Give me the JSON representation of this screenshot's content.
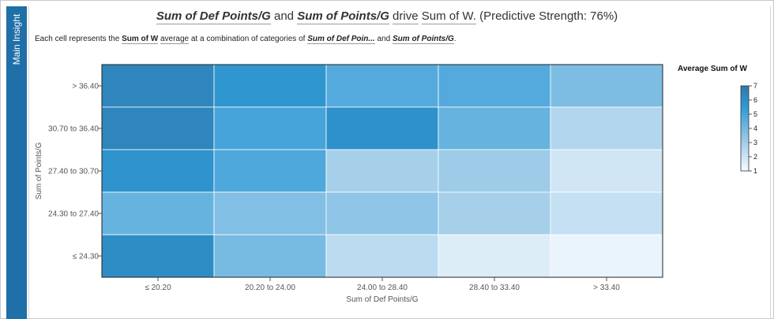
{
  "sidebar": {
    "label": "Main Insight"
  },
  "title": {
    "part1": "Sum of Def Points/G",
    "part2": " and ",
    "part3": "Sum of Points/G",
    "part4": " ",
    "part5": "drive",
    "part6": " ",
    "part7": "Sum of W.",
    "part8": " (Predictive Strength: 76%)"
  },
  "subtitle": {
    "t1": "Each cell represents the ",
    "t2": "Sum of W",
    "t3": " ",
    "t4": "average",
    "t5": " at a combination of categories of ",
    "t6": "Sum of Def Poin...",
    "t7": " and ",
    "t8": "Sum of Points/G",
    "t9": "."
  },
  "legend": {
    "title": "Average Sum of W"
  },
  "colors": {
    "low": "#f7fbff",
    "high": "#2e79ab",
    "mid": "#2f9ad6"
  },
  "chart_data": {
    "type": "heatmap",
    "xlabel": "Sum of Def Points/G",
    "ylabel": "Sum of Points/G",
    "x_categories": [
      "≤ 20.20",
      "20.20 to 24.00",
      "24.00 to 28.40",
      "28.40 to 33.40",
      "> 33.40"
    ],
    "y_categories": [
      "> 36.40",
      "30.70 to 36.40",
      "27.40 to 30.70",
      "24.30 to 27.40",
      "≤ 24.30"
    ],
    "values": [
      [
        6.4,
        5.7,
        4.7,
        4.7,
        3.8
      ],
      [
        6.4,
        5.0,
        5.9,
        4.3,
        2.6
      ],
      [
        5.8,
        4.8,
        2.9,
        3.1,
        1.9
      ],
      [
        4.3,
        3.7,
        3.4,
        2.9,
        2.2
      ],
      [
        6.1,
        3.9,
        2.4,
        1.6,
        1.3
      ]
    ],
    "color_scale": {
      "min": 1,
      "max": 7,
      "ticks": [
        1,
        2,
        3,
        4,
        5,
        6,
        7
      ]
    }
  }
}
